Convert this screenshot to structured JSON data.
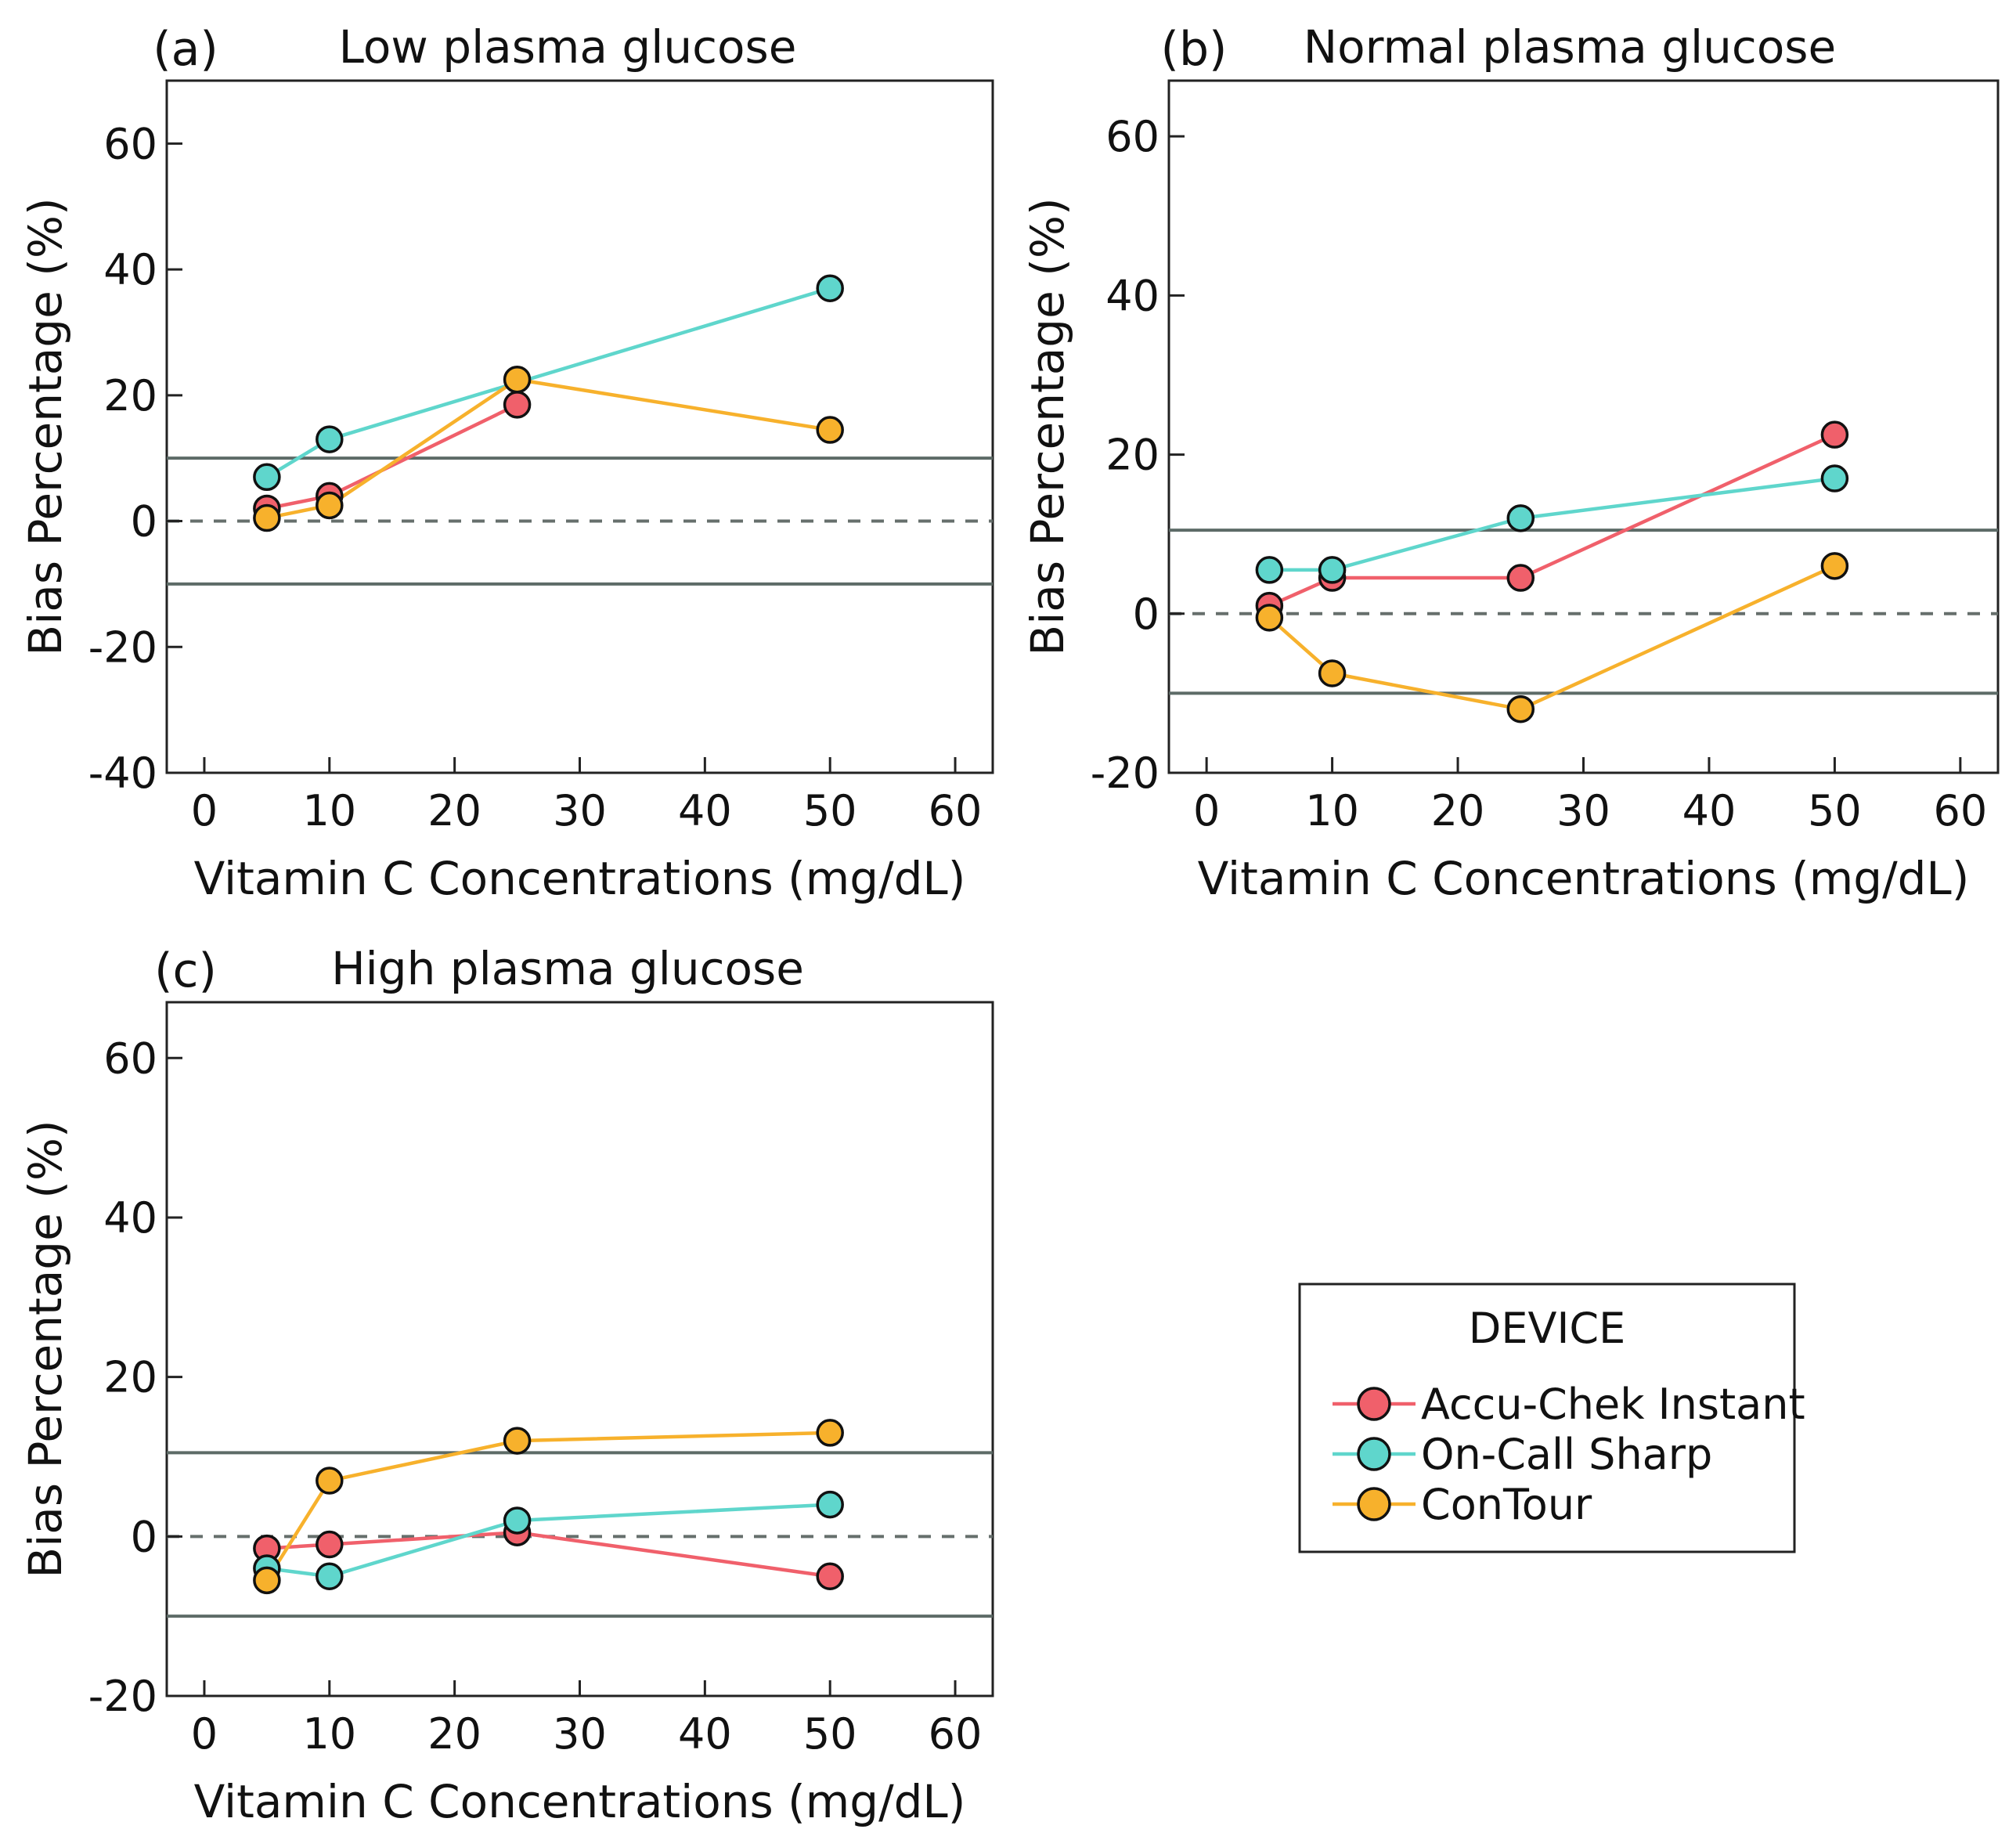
{
  "figure": {
    "legend": {
      "title": "DEVICE",
      "entries": [
        {
          "name": "Accu-Chek Instant",
          "color": "#f0606b"
        },
        {
          "name": "On-Call Sharp",
          "color": "#5fd6cc"
        },
        {
          "name": "ConTour",
          "color": "#f7b12c"
        }
      ]
    }
  },
  "chart_data": [
    {
      "type": "line",
      "panel": "(a)",
      "title": "Low plasma glucose",
      "xlabel": "Vitamin C Concentrations (mg/dL)",
      "ylabel": "Bias Percentage (%)",
      "xlim": [
        -3,
        63
      ],
      "ylim": [
        -40,
        70
      ],
      "xticks": [
        0,
        10,
        20,
        30,
        40,
        50,
        60
      ],
      "yticks": [
        -40,
        -20,
        0,
        20,
        40,
        60
      ],
      "x": [
        5,
        10,
        25,
        50
      ],
      "reference_lines": {
        "dashed": 0,
        "solid": [
          10,
          -10
        ]
      },
      "series": [
        {
          "name": "Accu-Chek Instant",
          "values": [
            2,
            4,
            18.5,
            null
          ]
        },
        {
          "name": "On-Call Sharp",
          "values": [
            7,
            13,
            null,
            37
          ]
        },
        {
          "name": "ConTour",
          "values": [
            0.5,
            2.5,
            22.5,
            14.5
          ]
        }
      ]
    },
    {
      "type": "line",
      "panel": "(b)",
      "title": "Normal plasma glucose",
      "xlabel": "Vitamin C Concentrations (mg/dL)",
      "ylabel": "Bias Percentage (%)",
      "xlim": [
        -3,
        63
      ],
      "ylim": [
        -20,
        67
      ],
      "xticks": [
        0,
        10,
        20,
        30,
        40,
        50,
        60
      ],
      "yticks": [
        -20,
        0,
        20,
        40,
        60
      ],
      "x": [
        5,
        10,
        25,
        50
      ],
      "reference_lines": {
        "dashed": 0,
        "solid": [
          10.5,
          -10
        ]
      },
      "series": [
        {
          "name": "Accu-Chek Instant",
          "values": [
            1,
            4.5,
            4.5,
            22.5
          ]
        },
        {
          "name": "On-Call Sharp",
          "values": [
            5.5,
            5.5,
            12,
            17
          ]
        },
        {
          "name": "ConTour",
          "values": [
            -0.5,
            -7.5,
            -12,
            6
          ]
        }
      ]
    },
    {
      "type": "line",
      "panel": "(c)",
      "title": "High plasma glucose",
      "xlabel": "Vitamin C Concentrations (mg/dL)",
      "ylabel": "Bias Percentage (%)",
      "xlim": [
        -3,
        63
      ],
      "ylim": [
        -20,
        67
      ],
      "xticks": [
        0,
        10,
        20,
        30,
        40,
        50,
        60
      ],
      "yticks": [
        -20,
        0,
        20,
        40,
        60
      ],
      "x": [
        5,
        10,
        25,
        50
      ],
      "reference_lines": {
        "dashed": 0,
        "solid": [
          10.5,
          -10
        ]
      },
      "series": [
        {
          "name": "Accu-Chek Instant",
          "values": [
            -1.5,
            -1,
            0.5,
            -5
          ]
        },
        {
          "name": "On-Call Sharp",
          "values": [
            -4,
            -5,
            2,
            4
          ]
        },
        {
          "name": "ConTour",
          "values": [
            -5.5,
            7,
            12,
            13
          ]
        }
      ]
    }
  ]
}
